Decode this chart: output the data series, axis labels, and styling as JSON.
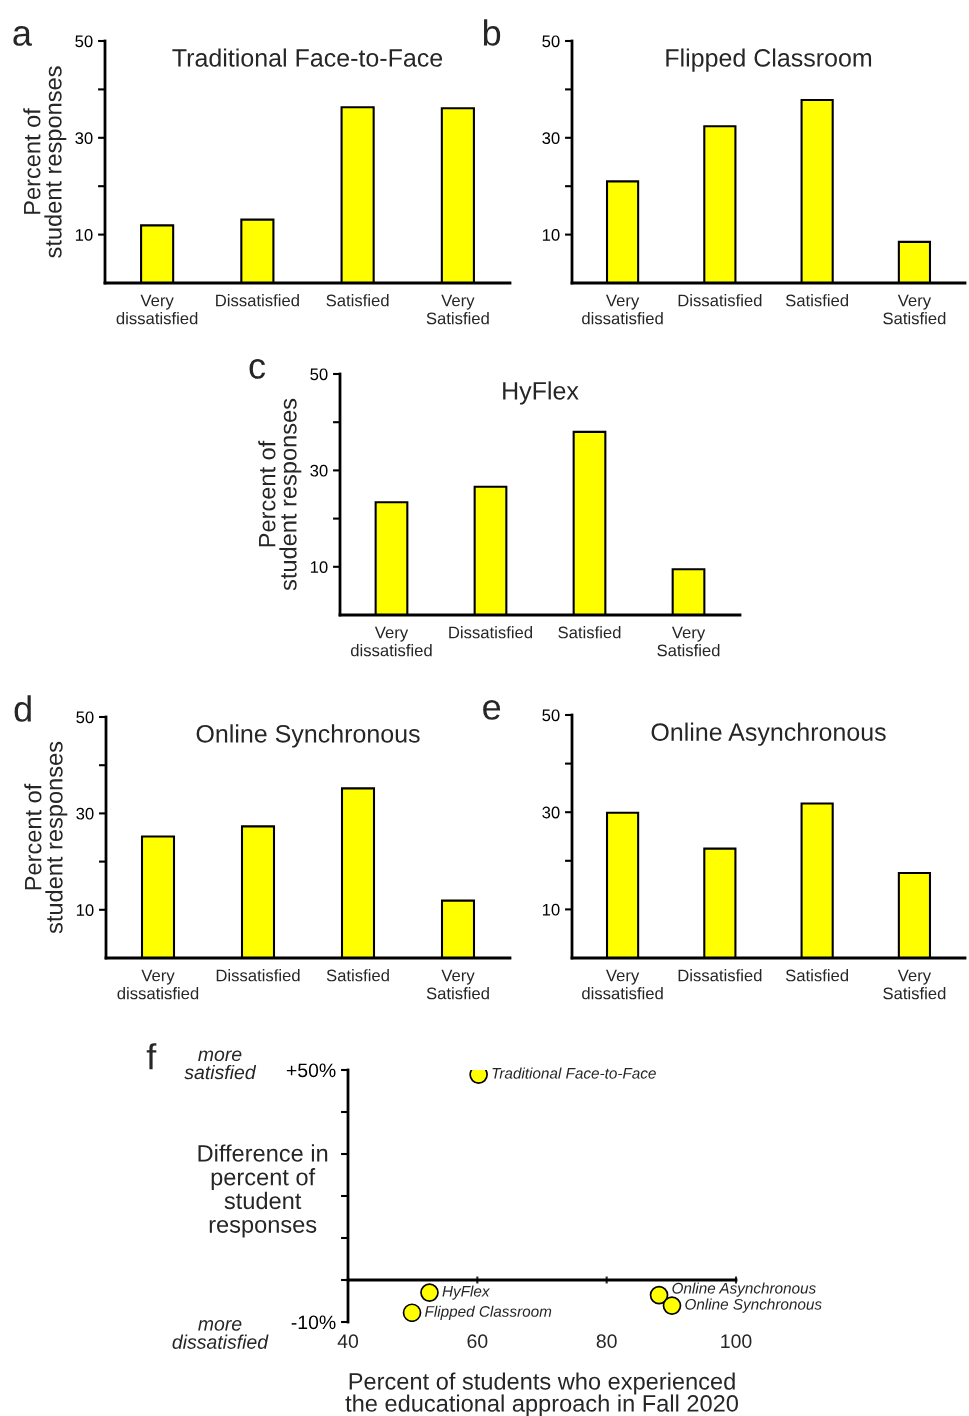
{
  "chart_data": [
    {
      "type": "bar",
      "title": "Traditional Face-to-Face",
      "ylabel": "Percent of\nstudent responses",
      "categories": [
        "Very\ndissatisfied",
        "Dissatisfied",
        "Satisfied",
        "Very\nSatisfied"
      ],
      "values": [
        11.9,
        13.1,
        36.3,
        36.1
      ],
      "color": "#ffff00",
      "ylim": [
        0,
        50
      ],
      "yticks": [
        10,
        {
          "value": 20,
          "label": null
        },
        30,
        {
          "value": 40,
          "label": null
        },
        50
      ],
      "annotations": [
        "a"
      ]
    },
    {
      "type": "bar",
      "title": "Flipped Classroom",
      "categories": [
        "Very\ndissatisfied",
        "Dissatisfied",
        "Satisfied",
        "Very\nSatisfied"
      ],
      "values": [
        21.0,
        32.4,
        37.8,
        8.5
      ],
      "color": "#ffff00",
      "ylim": [
        0,
        50
      ],
      "yticks": [
        10,
        {
          "value": 20,
          "label": null
        },
        30,
        {
          "value": 40,
          "label": null
        },
        50
      ],
      "annotations": [
        "b"
      ]
    },
    {
      "type": "bar",
      "title": "HyFlex",
      "ylabel": "Percent of\nstudent responses",
      "categories": [
        "Very\ndissatisfied",
        "Dissatisfied",
        "Satisfied",
        "Very\nSatisfied"
      ],
      "values": [
        23.4,
        26.6,
        38.0,
        9.5
      ],
      "color": "#ffff00",
      "ylim": [
        0,
        50
      ],
      "yticks": [
        10,
        {
          "value": 20,
          "label": null
        },
        30,
        {
          "value": 40,
          "label": null
        },
        50
      ],
      "annotations": [
        "c"
      ]
    },
    {
      "type": "bar",
      "title": "Online Synchronous",
      "ylabel": "Percent of\nstudent responses",
      "categories": [
        "Very\ndissatisfied",
        "Dissatisfied",
        "Satisfied",
        "Very\nSatisfied"
      ],
      "values": [
        25.2,
        27.3,
        35.2,
        11.9
      ],
      "color": "#ffff00",
      "ylim": [
        0,
        50
      ],
      "yticks": [
        10,
        {
          "value": 20,
          "label": null
        },
        30,
        {
          "value": 40,
          "label": null
        },
        50
      ],
      "annotations": [
        "d"
      ]
    },
    {
      "type": "bar",
      "title": "Online Asynchronous",
      "categories": [
        "Very\ndissatisfied",
        "Dissatisfied",
        "Satisfied",
        "Very\nSatisfied"
      ],
      "values": [
        29.9,
        22.5,
        31.8,
        17.5
      ],
      "color": "#ffff00",
      "ylim": [
        0,
        50
      ],
      "yticks": [
        10,
        {
          "value": 20,
          "label": null
        },
        30,
        {
          "value": 40,
          "label": null
        },
        50
      ],
      "annotations": [
        "e"
      ]
    },
    {
      "type": "scatter",
      "xlabel": "Percent of students who experienced\nthe educational approach in Fall 2020",
      "ylabel": "Difference in\npercent of\nstudent\nresponses",
      "x": [
        60.2,
        52.6,
        49.9,
        88.1,
        90.1
      ],
      "values": [
        48.9,
        -3.0,
        -7.8,
        -3.6,
        -6.1
      ],
      "color": "#ffff00",
      "marker": "circle",
      "xlim": [
        40,
        100
      ],
      "xticks": [
        40,
        60,
        80,
        100
      ],
      "ylim": [
        -10,
        50
      ],
      "yticks": [
        {
          "value": -10,
          "label": "-10%"
        },
        {
          "value": 0,
          "label": null
        },
        {
          "value": 10,
          "label": null
        },
        {
          "value": 20,
          "label": null
        },
        {
          "value": 30,
          "label": null
        },
        {
          "value": 40,
          "label": null
        },
        {
          "value": 50,
          "label": "+50%"
        }
      ],
      "annotations": [
        "f",
        "more\nsatisfied",
        "more\ndissatisfied",
        {
          "text": "Traditional Face-to-Face",
          "x": 60.2,
          "y": 48.9
        },
        {
          "text": "HyFlex",
          "x": 52.6,
          "y": -3.0
        },
        {
          "text": "Flipped Classroom",
          "x": 49.9,
          "y": -7.8
        },
        {
          "text": "Online Asynchronous",
          "x": 88.1,
          "y": -3.6
        },
        {
          "text": "Online Synchronous",
          "x": 90.1,
          "y": -6.1
        }
      ]
    }
  ]
}
